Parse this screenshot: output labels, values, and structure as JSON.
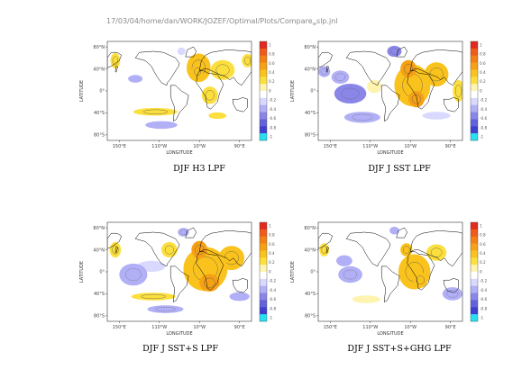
{
  "header": {
    "path": "17/03/04/home/dan/WORK/JOZEF/Optimal/Plots/Compare",
    "subscript": "w",
    "suffix": "slp.jnl"
  },
  "colors": {
    "pos": [
      "#fff3b0",
      "#fcdf3c",
      "#f9c21c",
      "#f6a115",
      "#f28014",
      "#ee5b1a",
      "#e22a1f"
    ],
    "neg": [
      "#d9d8ff",
      "#b1aff5",
      "#8a86e8",
      "#6362db",
      "#3f3fd0",
      "#27e1f0"
    ],
    "zero": "#ffffff",
    "land_outline": "#000000"
  },
  "chart_data": [
    {
      "type": "heatmap",
      "title": "DJF H3 LPF",
      "xlabel": "LONGITUDE",
      "ylabel": "LATITUDE",
      "xticks": [
        "150°E",
        "110°W",
        "10°W",
        "90°E"
      ],
      "yticks": [
        "80°N",
        "40°N",
        "0°",
        "40°S",
        "80°S"
      ],
      "colorbar": [
        "1",
        "0.8",
        "0.6",
        "0.4",
        "0.2",
        "0",
        "-0.2",
        "-0.4",
        "-0.6",
        "-0.8",
        "-1"
      ],
      "xlim": [
        120,
        480
      ],
      "ylim": [
        -90,
        90
      ],
      "blobs": [
        {
          "lon": 348,
          "lat": 42,
          "rlon": 30,
          "rlat": 26,
          "v": 0.4
        },
        {
          "lon": 345,
          "lat": 35,
          "rlon": 15,
          "rlat": 13,
          "v": 0.5
        },
        {
          "lon": 376,
          "lat": -8,
          "rlon": 20,
          "rlat": 16,
          "v": 0.35
        },
        {
          "lon": 408,
          "lat": 38,
          "rlon": 30,
          "rlat": 18,
          "v": 0.35
        },
        {
          "lon": 140,
          "lat": 55,
          "rlon": 12,
          "rlat": 14,
          "v": 0.3
        },
        {
          "lon": 470,
          "lat": 55,
          "rlon": 14,
          "rlat": 12,
          "v": 0.3
        },
        {
          "lon": 240,
          "lat": -38,
          "rlon": 55,
          "rlat": 7,
          "v": 0.35
        },
        {
          "lon": 395,
          "lat": -45,
          "rlon": 22,
          "rlat": 6,
          "v": 0.25
        },
        {
          "lon": 190,
          "lat": 22,
          "rlon": 18,
          "rlat": 7,
          "v": -0.25
        },
        {
          "lon": 255,
          "lat": -62,
          "rlon": 40,
          "rlat": 7,
          "v": -0.25
        },
        {
          "lon": 305,
          "lat": 72,
          "rlon": 10,
          "rlat": 7,
          "v": -0.2
        }
      ]
    },
    {
      "type": "heatmap",
      "title": "DJF J SST LPF",
      "xlabel": "LONGITUDE",
      "ylabel": "LATITUDE",
      "xticks": [
        "150°E",
        "110°W",
        "10°W",
        "90°E"
      ],
      "yticks": [
        "80°N",
        "40°N",
        "0°",
        "40°S",
        "80°S"
      ],
      "colorbar": [
        "1",
        "0.8",
        "0.6",
        "0.4",
        "0.2",
        "0",
        "-0.2",
        "-0.4",
        "-0.6",
        "-0.8",
        "-1"
      ],
      "xlim": [
        120,
        480
      ],
      "ylim": [
        -90,
        90
      ],
      "blobs": [
        {
          "lon": 355,
          "lat": 10,
          "rlon": 45,
          "rlat": 38,
          "v": 0.5
        },
        {
          "lon": 345,
          "lat": 40,
          "rlon": 20,
          "rlat": 16,
          "v": 0.65
        },
        {
          "lon": 365,
          "lat": -15,
          "rlon": 20,
          "rlat": 15,
          "v": 0.6
        },
        {
          "lon": 415,
          "lat": 30,
          "rlon": 30,
          "rlat": 22,
          "v": 0.4
        },
        {
          "lon": 470,
          "lat": 0,
          "rlon": 14,
          "rlat": 20,
          "v": 0.3
        },
        {
          "lon": 260,
          "lat": 8,
          "rlon": 18,
          "rlat": 12,
          "v": 0.2
        },
        {
          "lon": 200,
          "lat": -5,
          "rlon": 40,
          "rlat": 18,
          "v": -0.45
        },
        {
          "lon": 175,
          "lat": 25,
          "rlon": 22,
          "rlat": 12,
          "v": -0.35
        },
        {
          "lon": 230,
          "lat": -48,
          "rlon": 45,
          "rlat": 10,
          "v": -0.3
        },
        {
          "lon": 310,
          "lat": 72,
          "rlon": 18,
          "rlat": 10,
          "v": -0.4
        },
        {
          "lon": 415,
          "lat": -45,
          "rlon": 35,
          "rlat": 7,
          "v": -0.2
        },
        {
          "lon": 135,
          "lat": 35,
          "rlon": 15,
          "rlat": 10,
          "v": -0.3
        }
      ]
    },
    {
      "type": "heatmap",
      "title": "DJF J SST+S LPF",
      "xlabel": "LONGITUDE",
      "ylabel": "LATITUDE",
      "xticks": [
        "150°E",
        "110°W",
        "10°W",
        "90°E"
      ],
      "yticks": [
        "80°N",
        "40°N",
        "0°",
        "40°S",
        "80°S"
      ],
      "colorbar": [
        "1",
        "0.8",
        "0.6",
        "0.4",
        "0.2",
        "0",
        "-0.2",
        "-0.4",
        "-0.6",
        "-0.8",
        "-1"
      ],
      "xlim": [
        120,
        480
      ],
      "ylim": [
        -90,
        90
      ],
      "blobs": [
        {
          "lon": 365,
          "lat": 5,
          "rlon": 55,
          "rlat": 40,
          "v": 0.5
        },
        {
          "lon": 350,
          "lat": 40,
          "rlon": 20,
          "rlat": 16,
          "v": 0.6
        },
        {
          "lon": 375,
          "lat": -20,
          "rlon": 25,
          "rlat": 16,
          "v": 0.6
        },
        {
          "lon": 430,
          "lat": 25,
          "rlon": 32,
          "rlat": 22,
          "v": 0.4
        },
        {
          "lon": 140,
          "lat": 40,
          "rlon": 14,
          "rlat": 14,
          "v": 0.35
        },
        {
          "lon": 275,
          "lat": 40,
          "rlon": 20,
          "rlat": 14,
          "v": 0.3
        },
        {
          "lon": 235,
          "lat": -45,
          "rlon": 55,
          "rlat": 7,
          "v": 0.35
        },
        {
          "lon": 185,
          "lat": -5,
          "rlon": 35,
          "rlat": 20,
          "v": -0.35
        },
        {
          "lon": 230,
          "lat": 10,
          "rlon": 35,
          "rlat": 10,
          "v": -0.2
        },
        {
          "lon": 265,
          "lat": -68,
          "rlon": 45,
          "rlat": 7,
          "v": -0.3
        },
        {
          "lon": 450,
          "lat": -45,
          "rlon": 25,
          "rlat": 8,
          "v": -0.25
        },
        {
          "lon": 310,
          "lat": 72,
          "rlon": 14,
          "rlat": 8,
          "v": -0.3
        }
      ]
    },
    {
      "type": "heatmap",
      "title": "DJF J SST+S+GHG LPF",
      "xlabel": "LONGITUDE",
      "ylabel": "LATITUDE",
      "xticks": [
        "150°E",
        "110°W",
        "10°W",
        "90°E"
      ],
      "yticks": [
        "80°N",
        "40°N",
        "0°",
        "40°S",
        "80°S"
      ],
      "colorbar": [
        "1",
        "0.8",
        "0.6",
        "0.4",
        "0.2",
        "0",
        "-0.2",
        "-0.4",
        "-0.6",
        "-0.8",
        "-1"
      ],
      "xlim": [
        120,
        480
      ],
      "ylim": [
        -90,
        90
      ],
      "blobs": [
        {
          "lon": 360,
          "lat": 0,
          "rlon": 40,
          "rlat": 32,
          "v": 0.45
        },
        {
          "lon": 340,
          "lat": 40,
          "rlon": 15,
          "rlat": 12,
          "v": 0.5
        },
        {
          "lon": 375,
          "lat": -15,
          "rlon": 18,
          "rlat": 14,
          "v": 0.5
        },
        {
          "lon": 415,
          "lat": 35,
          "rlon": 25,
          "rlat": 15,
          "v": 0.35
        },
        {
          "lon": 135,
          "lat": 40,
          "rlon": 12,
          "rlat": 12,
          "v": 0.35
        },
        {
          "lon": 240,
          "lat": -50,
          "rlon": 35,
          "rlat": 7,
          "v": 0.2
        },
        {
          "lon": 200,
          "lat": -5,
          "rlon": 30,
          "rlat": 15,
          "v": -0.3
        },
        {
          "lon": 185,
          "lat": 20,
          "rlon": 20,
          "rlat": 10,
          "v": -0.25
        },
        {
          "lon": 455,
          "lat": -40,
          "rlon": 25,
          "rlat": 12,
          "v": -0.3
        },
        {
          "lon": 310,
          "lat": 75,
          "rlon": 12,
          "rlat": 7,
          "v": -0.25
        }
      ]
    }
  ]
}
